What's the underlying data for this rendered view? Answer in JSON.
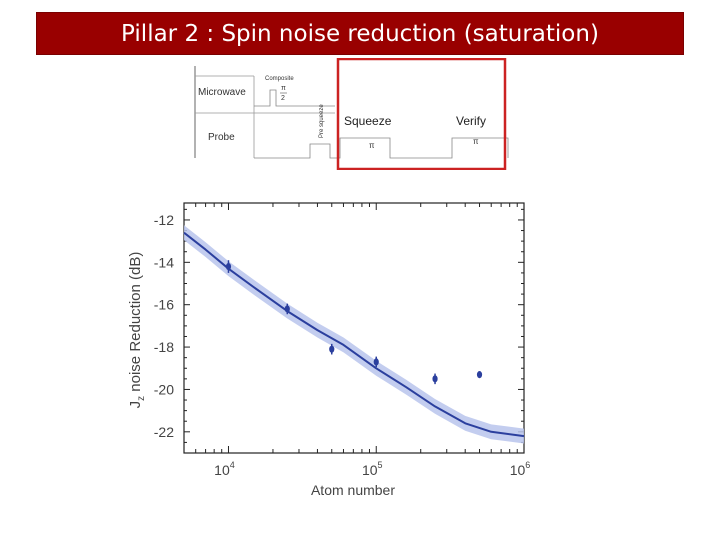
{
  "slide": {
    "title": "Pillar 2 : Spin noise reduction (saturation)"
  },
  "pulse_sequence": {
    "row_labels": [
      "Microwave",
      "Probe"
    ],
    "composite_label": "Composite",
    "pi_half_top": "π",
    "pi_half_bottom": "2",
    "pre_squeeze_label": "Pre squeeze",
    "squeeze_label": "Squeeze",
    "verify_label": "Verify",
    "squeeze_pulse_symbol": "π",
    "verify_pulse_symbol": "π",
    "highlight_color": "#cc2222"
  },
  "chart_data": {
    "type": "scatter",
    "xlabel": "Atom number",
    "ylabel_main": "J",
    "ylabel_sub": "z",
    "ylabel_rest": " noise Reduction (dB)",
    "x_scale": "log",
    "xlim": [
      5000,
      1000000
    ],
    "ylim": [
      -23,
      -11.2
    ],
    "x_ticks": [
      {
        "value": 10000,
        "base": "10",
        "exp": "4"
      },
      {
        "value": 100000,
        "base": "10",
        "exp": "5"
      },
      {
        "value": 1000000,
        "base": "10",
        "exp": "6"
      }
    ],
    "y_ticks": [
      -12,
      -14,
      -16,
      -18,
      -20,
      -22
    ],
    "points": [
      {
        "x": 10000,
        "y": -14.2,
        "err": 0.3
      },
      {
        "x": 25000,
        "y": -16.2,
        "err": 0.25
      },
      {
        "x": 50000,
        "y": -18.1,
        "err": 0.25
      },
      {
        "x": 100000,
        "y": -18.7,
        "err": 0.25
      },
      {
        "x": 250000,
        "y": -19.5,
        "err": 0.25
      },
      {
        "x": 500000,
        "y": -19.3,
        "err": 0.15
      }
    ],
    "fit_curve": [
      {
        "x": 5000,
        "y": -12.6
      },
      {
        "x": 7000,
        "y": -13.4
      },
      {
        "x": 10000,
        "y": -14.3
      },
      {
        "x": 15000,
        "y": -15.2
      },
      {
        "x": 25000,
        "y": -16.3
      },
      {
        "x": 40000,
        "y": -17.2
      },
      {
        "x": 60000,
        "y": -17.9
      },
      {
        "x": 100000,
        "y": -19.0
      },
      {
        "x": 160000,
        "y": -19.9
      },
      {
        "x": 250000,
        "y": -20.8
      },
      {
        "x": 400000,
        "y": -21.6
      },
      {
        "x": 600000,
        "y": -22.0
      },
      {
        "x": 1000000,
        "y": -22.2
      }
    ],
    "band_half_width": 0.35,
    "colors": {
      "series": "#2b3f9e",
      "band": "#b9c4ec",
      "axis": "#222222"
    },
    "grid": false
  }
}
